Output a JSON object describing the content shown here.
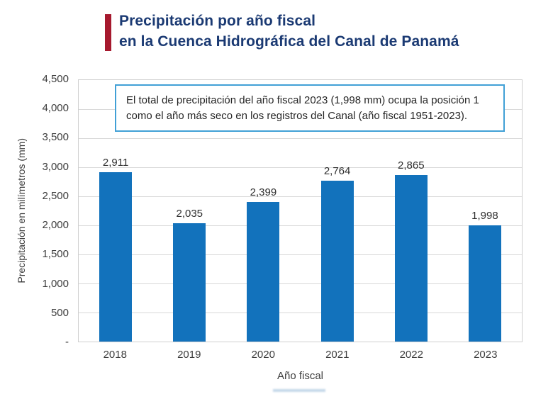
{
  "header": {
    "title_line1": "Precipitación por año fiscal",
    "title_line2": "en la Cuenca Hidrográfica del Canal de Panamá"
  },
  "annotation": {
    "line1": "El total de precipitación del año fiscal 2023 (1,998 mm) ocupa la posición 1",
    "line2": "como el año más seco en los registros del Canal (año fiscal 1951-2023)."
  },
  "chart_data": {
    "type": "bar",
    "title": "Precipitación por año fiscal en la Cuenca Hidrográfica del Canal de Panamá",
    "categories": [
      "2018",
      "2019",
      "2020",
      "2021",
      "2022",
      "2023"
    ],
    "values": [
      2911,
      2035,
      2399,
      2764,
      2865,
      1998
    ],
    "value_labels": [
      "2,911",
      "2,035",
      "2,399",
      "2,764",
      "2,865",
      "1,998"
    ],
    "xlabel": "Año fiscal",
    "ylabel": "Precipitación en milímetros (mm)",
    "ylim": [
      0,
      4500
    ],
    "ytick_step": 500,
    "yticks": [
      "4,500",
      "4,000",
      "3,500",
      "3,000",
      "2,500",
      "2,000",
      "1,500",
      "1,000",
      "500",
      "-"
    ],
    "grid": "horizontal",
    "legend": "none"
  },
  "colors": {
    "bar": "#1272bc",
    "title": "#1b3a73",
    "accent": "#a6192e",
    "annotation_border": "#41a0d6",
    "gridline": "#d9d9d9",
    "axis_text": "#3d3d3d"
  }
}
